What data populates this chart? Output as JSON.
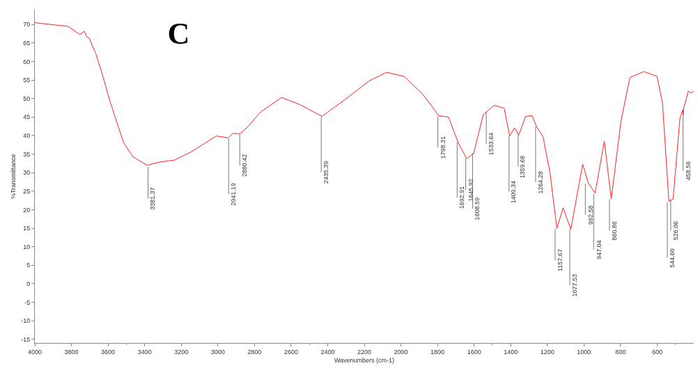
{
  "chart_data": {
    "type": "line",
    "title": "C",
    "xlabel": "Wavenumbers (cm-1)",
    "ylabel": "%Transmittance",
    "xlim": [
      4000,
      400
    ],
    "ylim": [
      -16,
      74
    ],
    "xticks": [
      4000,
      3800,
      3600,
      3400,
      3200,
      3000,
      2800,
      2600,
      2400,
      2200,
      2000,
      1800,
      1600,
      1400,
      1200,
      1000,
      800,
      600
    ],
    "yticks": [
      -15,
      -10,
      -5,
      0,
      5,
      10,
      15,
      20,
      25,
      30,
      35,
      40,
      45,
      50,
      55,
      60,
      65,
      70
    ],
    "marker": "none",
    "line_style": "solid",
    "series": [
      {
        "color": "#ff2020",
        "x": [
          4000,
          3818,
          3753,
          3730,
          3716,
          3704,
          3666,
          3628,
          3601,
          3563,
          3514,
          3464,
          3388,
          3312,
          3237,
          3146,
          3009,
          2944,
          2918,
          2880,
          2842,
          2766,
          2652,
          2553,
          2431,
          2299,
          2173,
          2078,
          1983,
          1881,
          1793,
          1740,
          1687,
          1641,
          1603,
          1550,
          1490,
          1436,
          1406,
          1379,
          1357,
          1319,
          1284,
          1258,
          1224,
          1186,
          1148,
          1114,
          1072,
          1007,
          977,
          939,
          889,
          851,
          798,
          749,
          673,
          601,
          571,
          536,
          513,
          476,
          460,
          458,
          455,
          430,
          415,
          400
        ],
        "values": [
          70.5,
          69.5,
          67.3,
          68.2,
          66.6,
          66.4,
          62,
          56,
          51.2,
          45.2,
          38,
          34.3,
          32,
          32.9,
          33.4,
          35.6,
          39.9,
          39.4,
          40.6,
          40.5,
          42.1,
          46.4,
          50.3,
          48.4,
          45.2,
          50,
          54.8,
          57.1,
          56,
          51.2,
          45.4,
          45,
          38.1,
          33.8,
          35.2,
          45.7,
          48.2,
          47.4,
          39.9,
          42.1,
          40.1,
          45.2,
          45.4,
          42.3,
          39.7,
          30.1,
          14.9,
          20.5,
          14.7,
          32.3,
          27.2,
          24.5,
          38.5,
          22.9,
          43.9,
          55.7,
          57.3,
          56,
          48.8,
          22.2,
          22.9,
          44.6,
          47,
          45.5,
          47.5,
          52,
          51.5,
          52
        ]
      }
    ],
    "annotations": [
      {
        "text": "3381.37",
        "x": 3381.37,
        "y": 31.5
      },
      {
        "text": "2941.19",
        "x": 2941.19,
        "y": 39.2
      },
      {
        "text": "2880.42",
        "x": 2880.42,
        "y": 40.4
      },
      {
        "text": "2435.39",
        "x": 2435.39,
        "y": 45.1
      },
      {
        "text": "1798.31",
        "x": 1798.31,
        "y": 45.3
      },
      {
        "text": "1692.91",
        "x": 1692.91,
        "y": 38.3
      },
      {
        "text": "1645.92",
        "x": 1645.92,
        "y": 33.8
      },
      {
        "text": "1608.59",
        "x": 1608.59,
        "y": 35.3
      },
      {
        "text": "1533.64",
        "x": 1533.64,
        "y": 46.2
      },
      {
        "text": "1409.34",
        "x": 1409.34,
        "y": 39.9
      },
      {
        "text": "1359.68",
        "x": 1359.68,
        "y": 40.1
      },
      {
        "text": "1264.28",
        "x": 1264.28,
        "y": 42.5
      },
      {
        "text": "1157.67",
        "x": 1157.67,
        "y": 14.8
      },
      {
        "text": "1077.53",
        "x": 1077.53,
        "y": 14.7
      },
      {
        "text": "992.58",
        "x": 992.58,
        "y": 27.1
      },
      {
        "text": "947.04",
        "x": 947.04,
        "y": 24.3
      },
      {
        "text": "860.86",
        "x": 860.86,
        "y": 22.8
      },
      {
        "text": "544.60",
        "x": 544.6,
        "y": 22.0
      },
      {
        "text": "526.06",
        "x": 526.06,
        "y": 22.8
      },
      {
        "text": "458.56",
        "x": 458.56,
        "y": 45.5
      }
    ]
  }
}
